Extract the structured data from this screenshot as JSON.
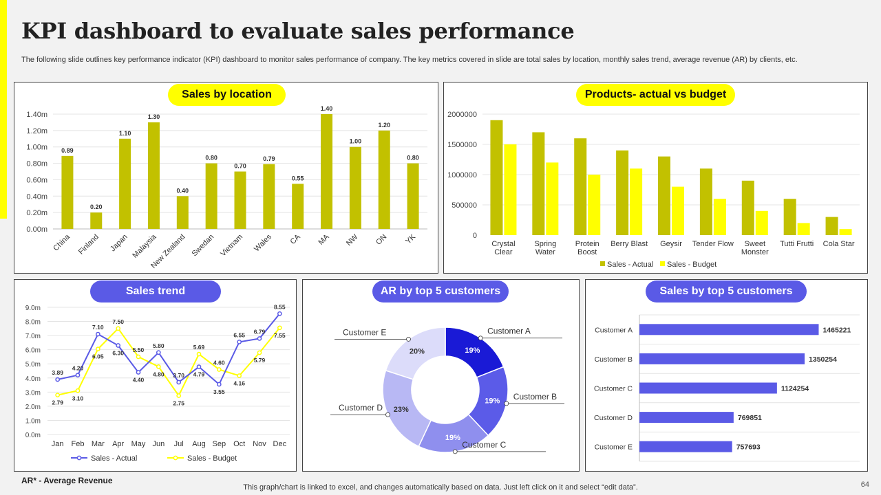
{
  "header": {
    "title": "KPI dashboard to evaluate sales performance",
    "subtitle": "The following slide outlines key performance indicator (KPI) dashboard to monitor sales performance of company. The key metrics covered in slide are total sales by location, monthly sales trend, average revenue (AR) by clients, etc."
  },
  "footer": {
    "note": "AR* - Average Revenue",
    "link_text": "This graph/chart is linked to excel,  and changes automatically based on data. Just left click on it and select “edit data”.",
    "page_number": "64"
  },
  "colors": {
    "olive": "#c2c100",
    "yellow": "#ffff00",
    "blue": "#5a5ae6",
    "grid": "#e4e4e4"
  },
  "chart_data": [
    {
      "type": "bar",
      "title": "Sales by location",
      "categories": [
        "China",
        "Finland",
        "Japan",
        "Malaysia",
        "New Zealand",
        "Swedan",
        "Vietnam",
        "Wales",
        "CA",
        "MA",
        "NW",
        "ON",
        "YK"
      ],
      "values": [
        0.89,
        0.2,
        1.1,
        1.3,
        0.4,
        0.8,
        0.7,
        0.79,
        0.55,
        1.4,
        1.0,
        1.2,
        0.8
      ],
      "data_labels": [
        "0.89",
        "0.20",
        "1.10",
        "1.30",
        "0.40",
        "0.80",
        "0.70",
        "0.79",
        "0.55",
        "1.40",
        "1.00",
        "1.20",
        "0.80"
      ],
      "ylim": [
        0,
        1.4
      ],
      "yticks": [
        0,
        0.2,
        0.4,
        0.6,
        0.8,
        1.0,
        1.2,
        1.4
      ],
      "ytick_labels": [
        "0.00m",
        "0.20m",
        "0.40m",
        "0.60m",
        "0.80m",
        "1.00m",
        "1.20m",
        "1.40m"
      ]
    },
    {
      "type": "bar",
      "title": "Products- actual vs budget",
      "categories": [
        "Crystal Clear",
        "Spring Water",
        "Protein Boost",
        "Berry Blast",
        "Geysir",
        "Tender Flow",
        "Sweet Monster",
        "Tutti Frutti",
        "Cola Star"
      ],
      "category_lines": [
        [
          "Crystal",
          "Clear"
        ],
        [
          "Spring",
          "Water"
        ],
        [
          "Protein",
          "Boost"
        ],
        [
          "Berry Blast"
        ],
        [
          "Geysir"
        ],
        [
          "Tender Flow"
        ],
        [
          "Sweet",
          "Monster"
        ],
        [
          "Tutti Frutti"
        ],
        [
          "Cola Star"
        ]
      ],
      "series": [
        {
          "name": "Sales - Actual",
          "values": [
            1900000,
            1700000,
            1600000,
            1400000,
            1300000,
            1100000,
            900000,
            600000,
            300000
          ]
        },
        {
          "name": "Sales - Budget",
          "values": [
            1500000,
            1200000,
            1000000,
            1100000,
            800000,
            600000,
            400000,
            200000,
            100000
          ]
        }
      ],
      "ylim": [
        0,
        2000000
      ],
      "yticks": [
        0,
        500000,
        1000000,
        1500000,
        2000000
      ],
      "ytick_labels": [
        "0",
        "500000",
        "1000000",
        "1500000",
        "2000000"
      ],
      "legend": "bottom"
    },
    {
      "type": "line",
      "title": "Sales trend",
      "categories": [
        "Jan",
        "Feb",
        "Mar",
        "Apr",
        "May",
        "Jun",
        "Jul",
        "Aug",
        "Sep",
        "Oct",
        "Nov",
        "Dec"
      ],
      "series": [
        {
          "name": "Sales - Actual",
          "values": [
            3.89,
            4.2,
            7.1,
            6.3,
            4.4,
            5.8,
            3.7,
            4.79,
            3.55,
            6.55,
            6.79,
            8.55
          ],
          "data_labels": [
            "3.89",
            "4.20",
            "7.10",
            "6.30",
            "4.40",
            "5.80",
            "3.70",
            "4.79",
            "3.55",
            "6.55",
            "6.79",
            "8.55"
          ]
        },
        {
          "name": "Sales - Budget",
          "values": [
            2.79,
            3.1,
            6.05,
            7.5,
            5.5,
            4.8,
            2.75,
            5.69,
            4.6,
            4.16,
            5.79,
            7.55
          ],
          "data_labels": [
            "2.79",
            "3.10",
            "6.05",
            "7.50",
            "5.50",
            "4.80",
            "2.75",
            "5.69",
            "4.60",
            "4.16",
            "5.79",
            "7.55"
          ]
        }
      ],
      "ylim": [
        0,
        9
      ],
      "yticks": [
        0,
        1,
        2,
        3,
        4,
        5,
        6,
        7,
        8,
        9
      ],
      "ytick_labels": [
        "0.0m",
        "1.0m",
        "2.0m",
        "3.0m",
        "4.0m",
        "5.0m",
        "6.0m",
        "7.0m",
        "8.0m",
        "9.0m"
      ],
      "legend": "bottom"
    },
    {
      "type": "pie",
      "title": "AR by top 5 customers",
      "labels": [
        "Customer A",
        "Customer B",
        "Customer C",
        "Customer D",
        "Customer E"
      ],
      "values": [
        19,
        19,
        19,
        23,
        20
      ],
      "value_labels": [
        "19%",
        "19%",
        "19%",
        "23%",
        "20%"
      ],
      "colors": [
        "#1a1ad6",
        "#5b5be8",
        "#8f8fee",
        "#b8b8f4",
        "#dcdcfa"
      ]
    },
    {
      "type": "bar",
      "orientation": "horizontal",
      "title": "Sales by top 5 customers",
      "categories": [
        "Customer A",
        "Customer B",
        "Customer C",
        "Customer D",
        "Customer E"
      ],
      "values": [
        1465221,
        1350254,
        1124254,
        769851,
        757693
      ],
      "data_labels": [
        "1465221",
        "1350254",
        "1124254",
        "769851",
        "757693"
      ],
      "xlim": [
        0,
        1800000
      ]
    }
  ]
}
